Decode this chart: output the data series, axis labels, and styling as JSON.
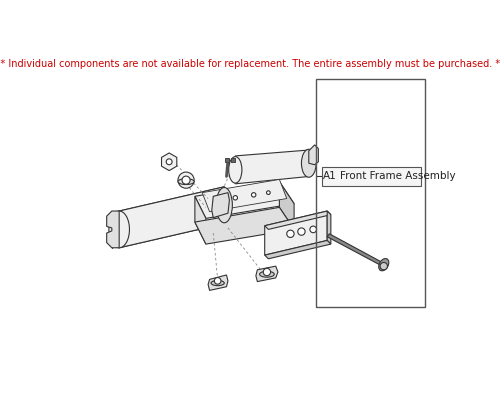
{
  "warning_text": "*** Individual components are not available for replacement. The entire assembly must be purchased. ***",
  "warning_color": "#cc0000",
  "warning_fontsize": 7.0,
  "bg_color": "#ffffff",
  "label_id": "A1",
  "label_text": "Front Frame Assembly",
  "label_fontsize": 7.5,
  "line_color": "#333333",
  "fill_light": "#f0f0f0",
  "fill_mid": "#e0e0e0",
  "fill_dark": "#cccccc",
  "fill_darker": "#aaaaaa"
}
